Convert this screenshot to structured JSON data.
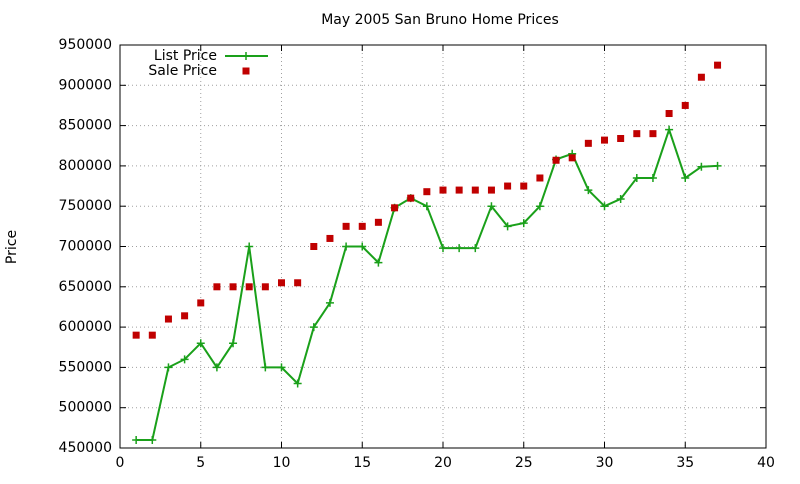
{
  "chart_data": {
    "type": "line",
    "title": "May 2005 San Bruno Home Prices",
    "y_label": "Price",
    "x": [
      1,
      2,
      3,
      4,
      5,
      6,
      7,
      8,
      9,
      10,
      11,
      12,
      13,
      14,
      15,
      16,
      17,
      18,
      19,
      20,
      21,
      22,
      23,
      24,
      25,
      26,
      27,
      28,
      29,
      30,
      31,
      32,
      33,
      34,
      35,
      36,
      37
    ],
    "series": [
      {
        "name": "List Price",
        "color": "#1aa01a",
        "line": true,
        "marker": "plus",
        "values": [
          460000,
          460000,
          550000,
          560000,
          580000,
          550000,
          580000,
          700000,
          550000,
          550000,
          530000,
          600000,
          630000,
          700000,
          700000,
          680000,
          748000,
          760000,
          750000,
          698000,
          698000,
          698000,
          750000,
          725000,
          729000,
          750000,
          808000,
          815000,
          770000,
          750000,
          759000,
          785000,
          785000,
          845000,
          785000,
          799000,
          800000
        ]
      },
      {
        "name": "Sale Price",
        "color": "#c00000",
        "line": false,
        "marker": "square",
        "values": [
          590000,
          590000,
          610000,
          614000,
          630000,
          650000,
          650000,
          650000,
          650000,
          655000,
          655000,
          700000,
          710000,
          725000,
          725000,
          730000,
          748000,
          760000,
          768000,
          770000,
          770000,
          770000,
          770000,
          775000,
          775000,
          785000,
          807000,
          810000,
          828000,
          832000,
          834000,
          840000,
          840000,
          865000,
          875000,
          910000,
          925000
        ]
      }
    ],
    "xlim": [
      0,
      40
    ],
    "xticks": [
      0,
      5,
      10,
      15,
      20,
      25,
      30,
      35,
      40
    ],
    "ylim": [
      450000,
      950000
    ],
    "yticks": [
      450000,
      500000,
      550000,
      600000,
      650000,
      700000,
      750000,
      800000,
      850000,
      900000,
      950000
    ],
    "grid": true,
    "legend": "top-left"
  }
}
